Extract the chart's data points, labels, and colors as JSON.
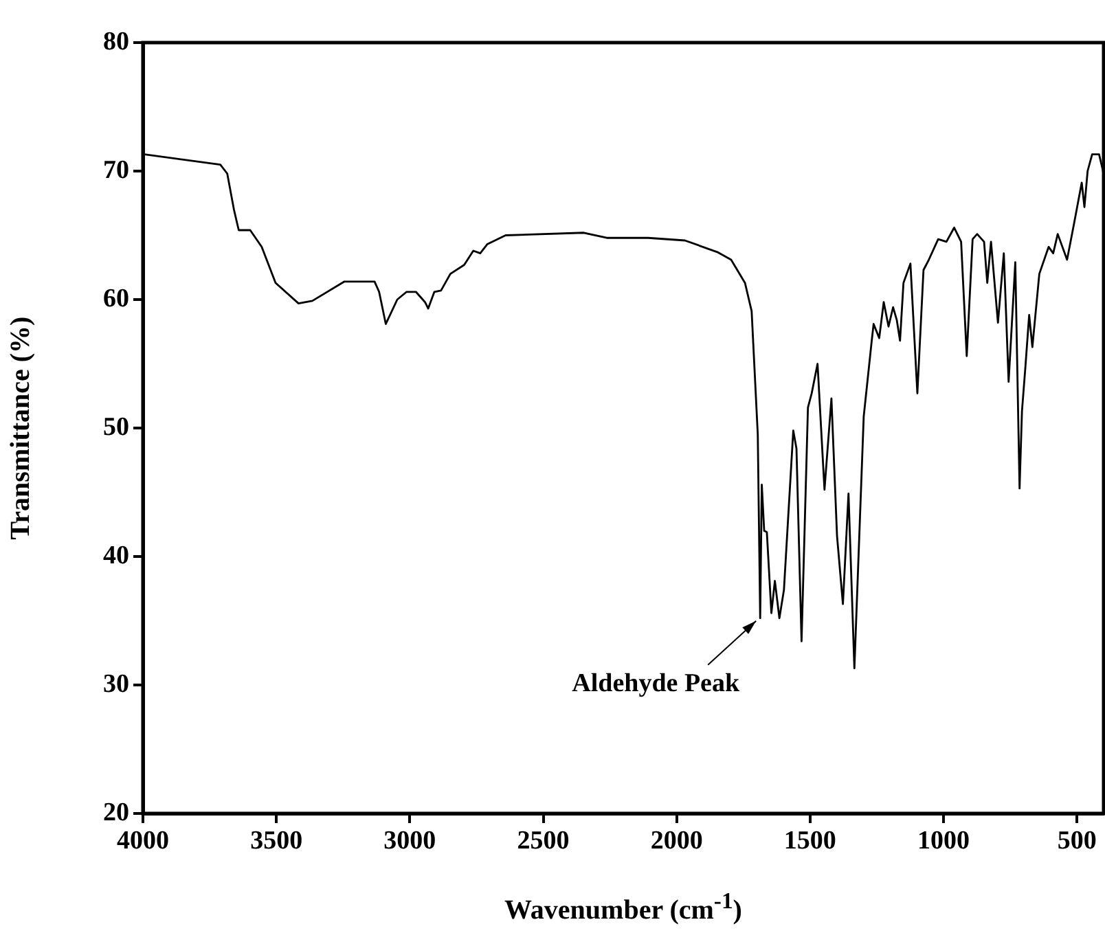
{
  "chart_data": {
    "type": "line",
    "xlabel": "Wavenumber (cm$^{-1}$)",
    "ylabel": "Transmittance (%)",
    "annotations": [
      {
        "text": "Aldehyde Peak",
        "x": 1687,
        "y": 35.2
      }
    ],
    "xlim": [
      4000,
      400
    ],
    "xticks": [
      4000,
      3500,
      3000,
      2500,
      2000,
      1500,
      1000,
      500
    ],
    "ylim": [
      20,
      80
    ],
    "yticks": [
      20,
      30,
      40,
      50,
      60,
      70,
      80
    ],
    "grid": false,
    "legend": false,
    "marker": "none",
    "line_style": "solid",
    "series": [
      {
        "color": "#000000",
        "x": [
          3995,
          3710,
          3684,
          3659,
          3641,
          3598,
          3555,
          3503,
          3417,
          3365,
          3245,
          3132,
          3115,
          3090,
          3047,
          3012,
          2977,
          2943,
          2931,
          2908,
          2883,
          2848,
          2796,
          2762,
          2736,
          2710,
          2641,
          2348,
          2262,
          2107,
          1969,
          1848,
          1796,
          1744,
          1719,
          1696,
          1687,
          1681,
          1672,
          1662,
          1645,
          1632,
          1615,
          1598,
          1563,
          1551,
          1532,
          1508,
          1494,
          1472,
          1446,
          1420,
          1399,
          1377,
          1356,
          1334,
          1299,
          1270,
          1262,
          1241,
          1224,
          1206,
          1189,
          1175,
          1163,
          1150,
          1124,
          1098,
          1075,
          1055,
          1020,
          989,
          960,
          934,
          913,
          891,
          874,
          848,
          836,
          822,
          796,
          774,
          756,
          731,
          715,
          706,
          693,
          679,
          667,
          641,
          606,
          589,
          572,
          537,
          511,
          482,
          472,
          460,
          443,
          417,
          400
        ],
        "values": [
          71.3,
          70.5,
          69.8,
          67.0,
          65.4,
          65.4,
          64.1,
          61.3,
          59.7,
          59.9,
          61.4,
          61.4,
          60.6,
          58.1,
          60.0,
          60.6,
          60.6,
          59.8,
          59.3,
          60.6,
          60.7,
          62.0,
          62.7,
          63.8,
          63.6,
          64.3,
          65.0,
          65.2,
          64.8,
          64.8,
          64.6,
          63.7,
          63.1,
          61.3,
          59.1,
          49.5,
          35.2,
          45.6,
          42.0,
          41.9,
          35.6,
          38.1,
          35.2,
          37.4,
          49.8,
          48.4,
          33.4,
          51.6,
          52.7,
          55.0,
          45.2,
          52.3,
          41.6,
          36.3,
          44.9,
          31.3,
          50.9,
          56.6,
          58.1,
          57.0,
          59.8,
          57.9,
          59.4,
          58.4,
          56.8,
          61.3,
          62.8,
          52.7,
          62.3,
          63.1,
          64.7,
          64.5,
          65.6,
          64.5,
          55.6,
          64.7,
          65.1,
          64.5,
          61.3,
          64.5,
          58.2,
          63.6,
          53.6,
          62.9,
          45.3,
          51.3,
          54.8,
          58.8,
          56.3,
          62.0,
          64.1,
          63.6,
          65.1,
          63.1,
          65.9,
          69.1,
          67.2,
          70.0,
          71.3,
          71.3,
          69.8
        ]
      }
    ]
  }
}
